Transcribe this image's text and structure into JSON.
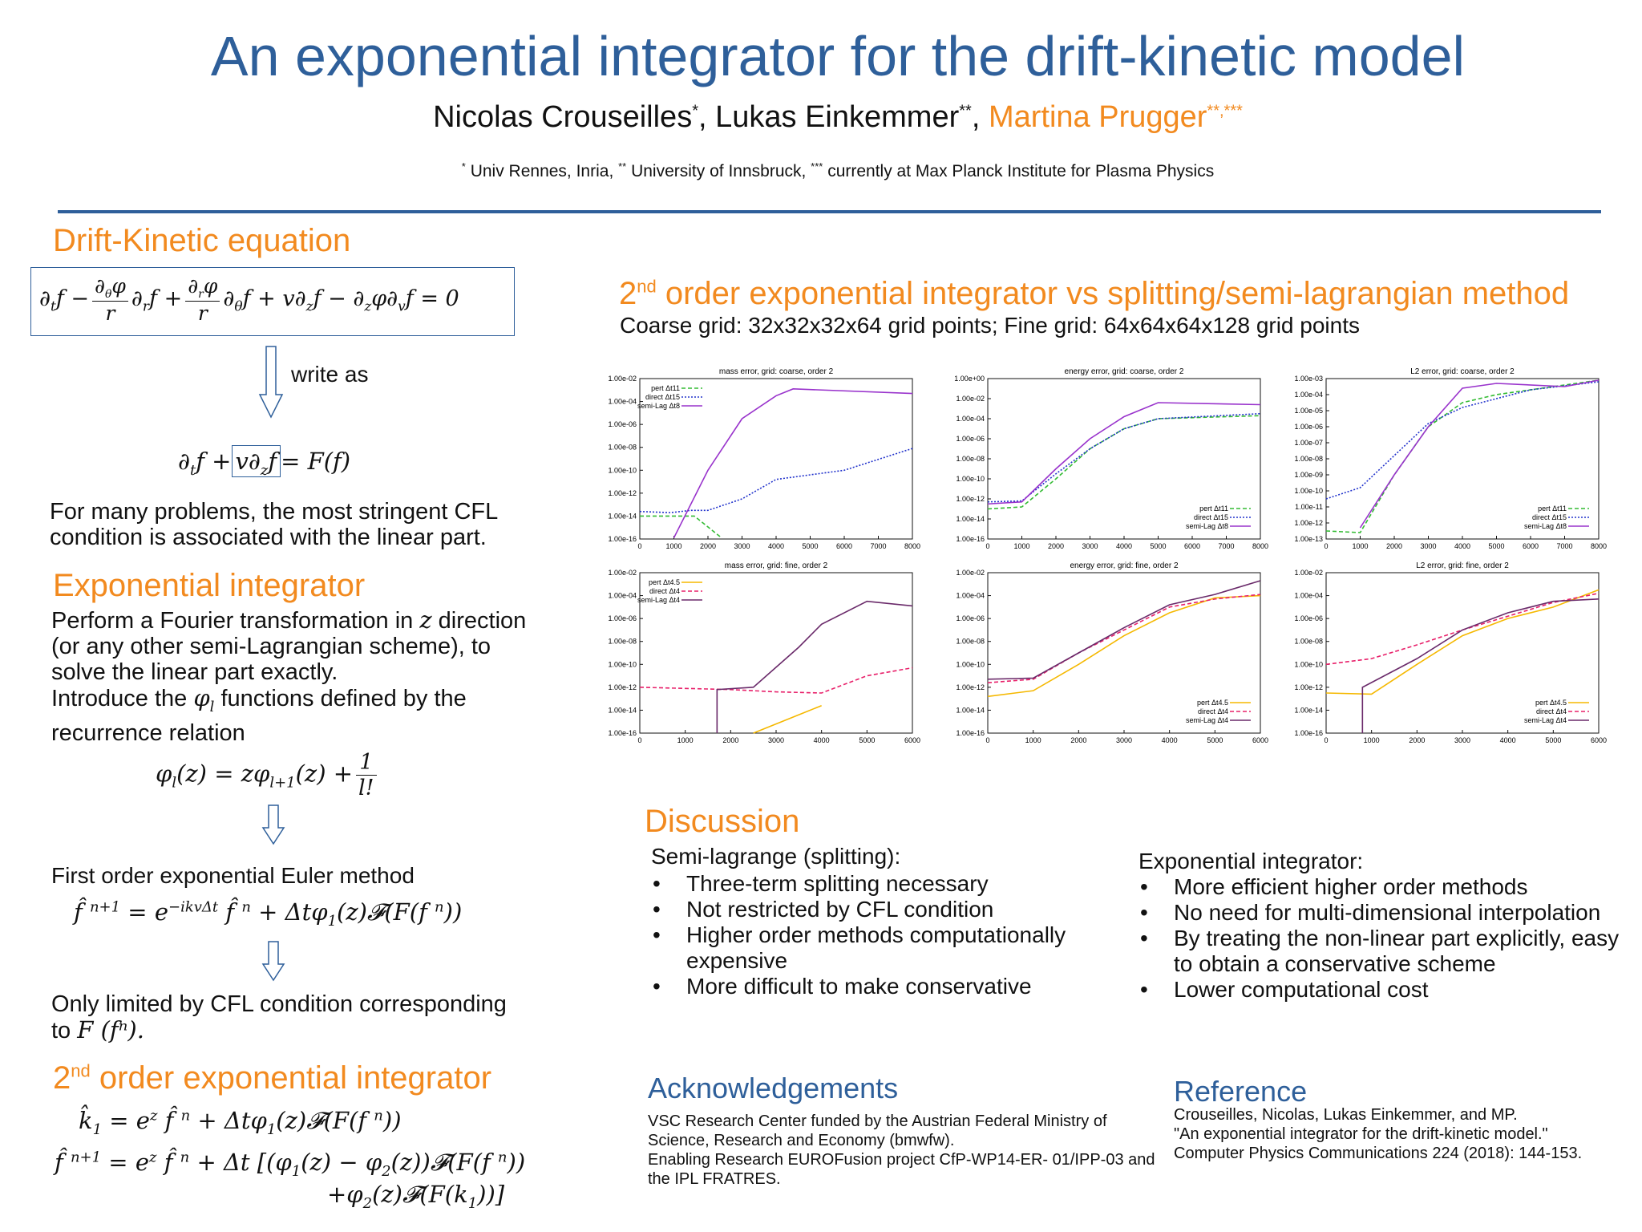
{
  "title": "An exponential integrator for the drift-kinetic model",
  "authors": {
    "a1": "Nicolas Crouseilles",
    "a1_sup": "*",
    "sep1": ", ",
    "a2": "Lukas Einkemmer",
    "a2_sup": "**",
    "sep2": ", ",
    "a3": "Martina Prugger",
    "a3_sup": "**,***"
  },
  "affiliations": {
    "s1": "*",
    "t1": " Univ Rennes, Inria, ",
    "s2": "**",
    "t2": " University of Innsbruck, ",
    "s3": "***",
    "t3": " currently at Max Planck Institute for Plasma Physics"
  },
  "left": {
    "dk_heading": "Drift-Kinetic equation",
    "write_as": "write as",
    "cfl_text": "For many problems, the most stringent CFL condition is associated with the linear part.",
    "exp_heading": "Exponential integrator",
    "exp_text1a": "Perform a Fourier transformation in ",
    "exp_text1_var": "z",
    "exp_text1b": " direction (or any other semi-Lagrangian scheme), to solve the linear part exactly.",
    "exp_text2a": "Introduce the ",
    "exp_text2_var": "φ",
    "exp_text2_sub": "l",
    "exp_text2b": " functions defined by the recurrence relation",
    "euler_label": "First order exponential Euler method",
    "cfl2_text": "Only limited by CFL condition corresponding to ",
    "cfl2_math": "F (fⁿ).",
    "second_heading_sup": "nd",
    "second_heading_pre": "2",
    "second_heading": " order exponential integrator"
  },
  "right": {
    "heading_pre": "2",
    "heading_sup": "nd",
    "heading": " order exponential integrator vs splitting/semi-lagrangian method",
    "grid_text": "Coarse grid: 32x32x32x64 grid points; Fine grid: 64x64x64x128 grid points",
    "discussion_heading": "Discussion",
    "semi_title": "Semi-lagrange (splitting):",
    "semi_items": [
      "Three-term splitting necessary",
      "Not restricted by CFL condition",
      "Higher order methods computationally expensive",
      "More difficult to make conservative"
    ],
    "exp_title": "Exponential integrator:",
    "exp_items": [
      "More efficient higher order methods",
      "No need for multi-dimensional interpolation",
      "By treating the non-linear part explicitly, easy to obtain a conservative scheme",
      "Lower computational cost"
    ],
    "ack_heading": "Acknowledgements",
    "ack_text1": "VSC Research Center funded by the Austrian Federal Ministry of Science, Research and Economy (bmwfw).",
    "ack_text2": "Enabling Research EUROFusion project CfP-WP14-ER- 01/IPP-03 and the IPL FRATRES.",
    "ref_heading": "Reference",
    "ref_text1": "Crouseilles, Nicolas, Lukas Einkemmer, and MP.",
    "ref_text2": "\"An exponential integrator for the drift-kinetic model.\"",
    "ref_text3": "Computer Physics Communications 224 (2018): 144-153."
  },
  "colors": {
    "title_blue": "#2e5f9a",
    "heading_orange": "#f28a1f",
    "pert_coarse": "#33bb33",
    "direct_coarse": "#2233cc",
    "semilag_coarse": "#9933cc",
    "pert_fine": "#f5b800",
    "direct_fine": "#e8206a",
    "semilag_fine": "#6a2a6a"
  },
  "chart_data": [
    {
      "type": "line",
      "title": "mass error, grid: coarse, order 2",
      "x_range": [
        0,
        8000
      ],
      "xticks": [
        "0",
        "1000",
        "2000",
        "3000",
        "4000",
        "5000",
        "6000",
        "7000",
        "8000"
      ],
      "log_y": true,
      "ylim_exp": [
        -16,
        -2
      ],
      "yticks": [
        "1.00e-02",
        "1.00e-04",
        "1.00e-06",
        "1.00e-08",
        "1.00e-10",
        "1.00e-12",
        "1.00e-14",
        "1.00e-16"
      ],
      "legend": "top-left",
      "series": [
        {
          "name": "pert Δt11",
          "style": "dashed"
        },
        {
          "name": "direct Δt15",
          "style": "dotted"
        },
        {
          "name": "semi-Lag Δt8",
          "style": "solid"
        }
      ]
    },
    {
      "type": "line",
      "title": "energy error, grid: coarse, order 2",
      "x_range": [
        0,
        8000
      ],
      "xticks": [
        "0",
        "1000",
        "2000",
        "3000",
        "4000",
        "5000",
        "6000",
        "7000",
        "8000"
      ],
      "log_y": true,
      "ylim_exp": [
        -16,
        0
      ],
      "yticks": [
        "1.00e+00",
        "1.00e-02",
        "1.00e-04",
        "1.00e-06",
        "1.00e-08",
        "1.00e-10",
        "1.00e-12",
        "1.00e-14",
        "1.00e-16"
      ],
      "legend": "bottom-right",
      "series": [
        {
          "name": "pert Δt11",
          "style": "dashed"
        },
        {
          "name": "direct Δt15",
          "style": "dotted"
        },
        {
          "name": "semi-Lag Δt8",
          "style": "solid"
        }
      ]
    },
    {
      "type": "line",
      "title": "L2 error, grid: coarse, order 2",
      "x_range": [
        0,
        8000
      ],
      "xticks": [
        "0",
        "1000",
        "2000",
        "3000",
        "4000",
        "5000",
        "6000",
        "7000",
        "8000"
      ],
      "log_y": true,
      "ylim_exp": [
        -13,
        -3
      ],
      "yticks": [
        "1.00e-03",
        "1.00e-04",
        "1.00e-05",
        "1.00e-06",
        "1.00e-07",
        "1.00e-08",
        "1.00e-09",
        "1.00e-10",
        "1.00e-11",
        "1.00e-12",
        "1.00e-13"
      ],
      "legend": "bottom-right",
      "series": [
        {
          "name": "pert Δt11",
          "style": "dashed"
        },
        {
          "name": "direct Δt15",
          "style": "dotted"
        },
        {
          "name": "semi-Lag Δt8",
          "style": "solid"
        }
      ]
    },
    {
      "type": "line",
      "title": "mass error, grid: fine, order 2",
      "x_range": [
        0,
        6000
      ],
      "xticks": [
        "0",
        "1000",
        "2000",
        "3000",
        "4000",
        "5000",
        "6000"
      ],
      "log_y": true,
      "ylim_exp": [
        -16,
        -2
      ],
      "yticks": [
        "1.00e-02",
        "1.00e-04",
        "1.00e-06",
        "1.00e-08",
        "1.00e-10",
        "1.00e-12",
        "1.00e-14",
        "1.00e-16"
      ],
      "legend": "top-left",
      "series": [
        {
          "name": "pert Δt4.5",
          "style": "solid"
        },
        {
          "name": "direct   Δt4",
          "style": "dashed"
        },
        {
          "name": "semi-Lag Δt4",
          "style": "solid"
        }
      ]
    },
    {
      "type": "line",
      "title": "energy error, grid: fine, order 2",
      "x_range": [
        0,
        6000
      ],
      "xticks": [
        "0",
        "1000",
        "2000",
        "3000",
        "4000",
        "5000",
        "6000"
      ],
      "log_y": true,
      "ylim_exp": [
        -16,
        -2
      ],
      "yticks": [
        "1.00e-02",
        "1.00e-04",
        "1.00e-06",
        "1.00e-08",
        "1.00e-10",
        "1.00e-12",
        "1.00e-14",
        "1.00e-16"
      ],
      "legend": "bottom-right",
      "series": [
        {
          "name": "pert Δt4.5",
          "style": "solid"
        },
        {
          "name": "direct   Δt4",
          "style": "dashed"
        },
        {
          "name": "semi-Lag Δt4",
          "style": "solid"
        }
      ]
    },
    {
      "type": "line",
      "title": "L2 error, grid: fine, order 2",
      "x_range": [
        0,
        6000
      ],
      "xticks": [
        "0",
        "1000",
        "2000",
        "3000",
        "4000",
        "5000",
        "6000"
      ],
      "log_y": true,
      "ylim_exp": [
        -16,
        -2
      ],
      "yticks": [
        "1.00e-02",
        "1.00e-04",
        "1.00e-06",
        "1.00e-08",
        "1.00e-10",
        "1.00e-12",
        "1.00e-14",
        "1.00e-16"
      ],
      "legend": "bottom-right",
      "series": [
        {
          "name": "pert Δt4.5",
          "style": "solid"
        },
        {
          "name": "direct   Δt4",
          "style": "dashed"
        },
        {
          "name": "semi-Lag Δt4",
          "style": "solid"
        }
      ]
    }
  ]
}
